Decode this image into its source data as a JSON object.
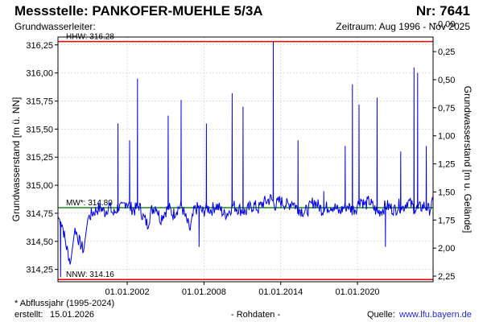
{
  "header": {
    "title": "Messstelle: PANKOFER-MUEHLE 5/3A",
    "number": "Nr: 7641",
    "aquifer_label": "Grundwasserleiter:",
    "period": "Zeitraum: Aug 1996 - Nov 2025"
  },
  "footer": {
    "note": "* Abflussjahr (1995-2024)",
    "created_label": "erstellt:",
    "created_date": "15.01.2026",
    "raw": "- Rohdaten -",
    "source_label": "Quelle:",
    "source_url": "www.lfu.bayern.de"
  },
  "colors": {
    "series": "#0000e6",
    "extreme_lines": "#e60000",
    "mean_line": "#1a8a1a",
    "grid": "#c8c8c8"
  },
  "chart_data": {
    "type": "line",
    "ylabel": "Grundwasserstand [m ü. NN]",
    "y2label": "Grundwasserstand [m u. Gelände]",
    "ylim": [
      314.14,
      316.32
    ],
    "y2lim": [
      2.3,
      0.12
    ],
    "yticks": [
      "314,25",
      "314,50",
      "314,75",
      "315,00",
      "315,25",
      "315,50",
      "315,75",
      "316,00",
      "316,25"
    ],
    "yticks_values": [
      314.25,
      314.5,
      314.75,
      315.0,
      315.25,
      315.5,
      315.75,
      316.0,
      316.25
    ],
    "y2ticks": [
      "2,25",
      "2,00",
      "1,75",
      "1,50",
      "1,25",
      "1,00",
      "0,75",
      "0,50",
      "0,25",
      "0,00"
    ],
    "y2ticks_values": [
      2.25,
      2.0,
      1.75,
      1.5,
      1.25,
      1.0,
      0.75,
      0.5,
      0.25,
      0.0
    ],
    "xlim": [
      "1996-08-01",
      "2025-11-30"
    ],
    "xticks": [
      "01.01.2002",
      "01.01.2008",
      "01.01.2014",
      "01.01.2020"
    ],
    "xticks_dates": [
      "2002-01-01",
      "2008-01-01",
      "2014-01-01",
      "2020-01-01"
    ],
    "grid": true,
    "reference_lines": [
      {
        "label": "HHW: 316.28",
        "value": 316.28,
        "color": "#e60000"
      },
      {
        "label": "MW*: 314.80",
        "value": 314.8,
        "color": "#1a8a1a"
      },
      {
        "label": "NNW: 314.16",
        "value": 314.16,
        "color": "#e60000"
      }
    ],
    "series": [
      {
        "x": [
          "1996-08-01",
          "1996-12-01",
          "1997-04-01",
          "1997-08-01",
          "1997-12-01",
          "1998-04-01",
          "1998-08-01",
          "1998-12-01",
          "1999-04-01",
          "1999-08-01",
          "1999-12-01",
          "2000-04-01",
          "2000-08-01",
          "2000-12-01",
          "2001-04-01",
          "2001-08-01",
          "2001-12-01",
          "2002-04-01",
          "2002-08-01",
          "2002-12-01",
          "2003-04-01",
          "2003-08-01",
          "2003-12-01",
          "2004-04-01",
          "2004-08-01",
          "2004-12-01",
          "2005-04-01",
          "2005-08-01",
          "2005-12-01",
          "2006-04-01",
          "2006-08-01",
          "2006-12-01",
          "2007-04-01",
          "2007-08-01",
          "2007-12-01",
          "2008-04-01",
          "2008-08-01",
          "2008-12-01",
          "2009-04-01",
          "2009-08-01",
          "2009-12-01",
          "2010-04-01",
          "2010-08-01",
          "2010-12-01",
          "2011-04-01",
          "2011-08-01",
          "2011-12-01",
          "2012-04-01",
          "2012-08-01",
          "2012-12-01",
          "2013-04-01",
          "2013-08-01",
          "2013-12-01",
          "2014-04-01",
          "2014-08-01",
          "2014-12-01",
          "2015-04-01",
          "2015-08-01",
          "2015-12-01",
          "2016-04-01",
          "2016-08-01",
          "2016-12-01",
          "2017-04-01",
          "2017-08-01",
          "2017-12-01",
          "2018-04-01",
          "2018-08-01",
          "2018-12-01",
          "2019-04-01",
          "2019-08-01",
          "2019-12-01",
          "2020-04-01",
          "2020-08-01",
          "2020-12-01",
          "2021-04-01",
          "2021-08-01",
          "2021-12-01",
          "2022-04-01",
          "2022-08-01",
          "2022-12-01",
          "2023-04-01",
          "2023-08-01",
          "2023-12-01",
          "2024-04-01",
          "2024-08-01",
          "2024-12-01",
          "2025-04-01",
          "2025-08-01",
          "2025-11-30"
        ],
        "values": [
          314.72,
          314.65,
          314.45,
          314.3,
          314.62,
          314.5,
          314.42,
          314.7,
          314.75,
          314.78,
          314.8,
          314.76,
          314.82,
          314.74,
          314.8,
          314.79,
          314.86,
          314.8,
          314.78,
          314.82,
          314.72,
          314.65,
          314.78,
          314.82,
          314.7,
          314.76,
          314.8,
          314.74,
          314.79,
          314.82,
          314.7,
          314.6,
          314.78,
          314.8,
          314.76,
          314.8,
          314.78,
          314.82,
          314.79,
          314.74,
          314.76,
          314.82,
          314.8,
          314.78,
          314.76,
          314.8,
          314.82,
          314.79,
          314.84,
          314.86,
          314.88,
          314.82,
          314.86,
          314.84,
          314.82,
          314.86,
          314.8,
          314.78,
          314.76,
          314.8,
          314.86,
          314.82,
          314.78,
          314.8,
          314.82,
          314.8,
          314.76,
          314.8,
          314.82,
          314.78,
          314.8,
          314.88,
          314.82,
          314.86,
          314.8,
          314.76,
          314.78,
          314.82,
          314.8,
          314.78,
          314.82,
          314.8,
          314.86,
          314.82,
          314.78,
          314.8,
          314.82,
          314.78,
          314.84
        ]
      }
    ],
    "peaks": [
      {
        "date": "1996-10-15",
        "value": 314.18
      },
      {
        "date": "2001-04-10",
        "value": 315.55
      },
      {
        "date": "2002-03-10",
        "value": 315.4
      },
      {
        "date": "2002-10-20",
        "value": 315.95
      },
      {
        "date": "2005-03-15",
        "value": 315.62
      },
      {
        "date": "2006-03-20",
        "value": 315.76
      },
      {
        "date": "2007-08-15",
        "value": 314.45
      },
      {
        "date": "2008-03-10",
        "value": 315.55
      },
      {
        "date": "2010-03-15",
        "value": 315.82
      },
      {
        "date": "2011-01-20",
        "value": 315.7
      },
      {
        "date": "2013-06-02",
        "value": 316.28
      },
      {
        "date": "2015-05-10",
        "value": 315.4
      },
      {
        "date": "2017-05-15",
        "value": 315.0
      },
      {
        "date": "2019-01-15",
        "value": 315.35
      },
      {
        "date": "2019-08-10",
        "value": 315.9
      },
      {
        "date": "2020-02-15",
        "value": 315.72
      },
      {
        "date": "2021-07-15",
        "value": 315.78
      },
      {
        "date": "2022-03-10",
        "value": 314.45
      },
      {
        "date": "2023-05-20",
        "value": 315.3
      },
      {
        "date": "2024-06-03",
        "value": 316.05
      },
      {
        "date": "2024-09-15",
        "value": 316.0
      },
      {
        "date": "2025-05-20",
        "value": 315.35
      }
    ]
  }
}
